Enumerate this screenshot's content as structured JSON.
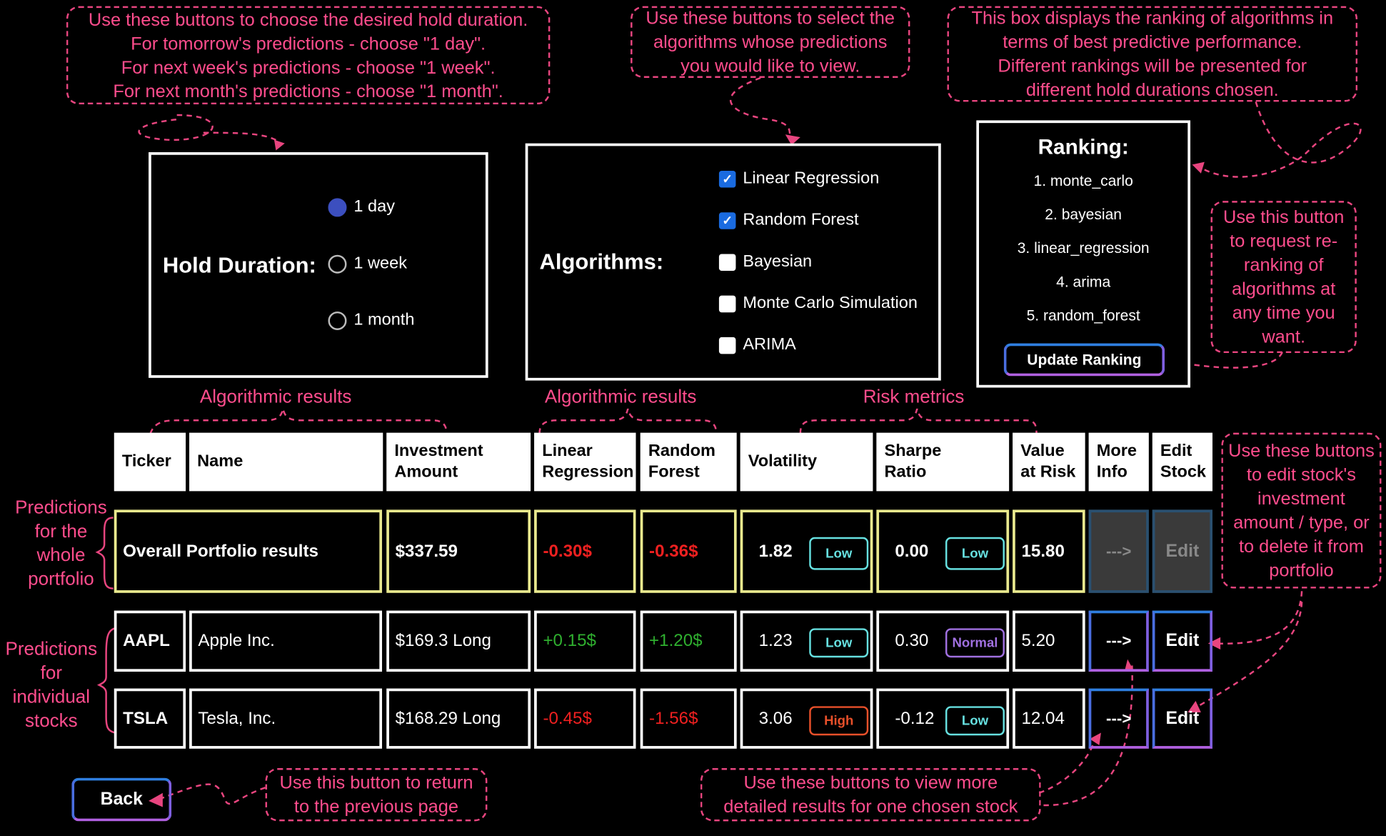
{
  "notes": {
    "hold": [
      "Use these buttons to choose the desired hold duration.",
      "For tomorrow's predictions - choose \"1 day\".",
      "For next week's predictions - choose \"1 week\".",
      "For next month's predictions - choose \"1 month\"."
    ],
    "algos": [
      "Use these buttons to select the",
      "algorithms whose predictions",
      "you would like to view."
    ],
    "ranking": [
      "This box displays the ranking of algorithms in",
      "terms of best predictive performance.",
      "Different rankings will be presented for",
      "different hold durations chosen."
    ],
    "update": [
      "Use this button",
      "to request re-",
      "ranking of",
      "algorithms at",
      "any time you",
      "want."
    ],
    "edit": [
      "Use these buttons",
      "to edit stock's",
      "investment",
      "amount / type, or",
      "to delete it from",
      "portfolio"
    ],
    "back": [
      "Use this button to return",
      "to the previous page"
    ],
    "more": [
      "Use these buttons to view more",
      "detailed results for one chosen stock"
    ],
    "portfolio_side": [
      "Predictions",
      "for the",
      "whole",
      "portfolio"
    ],
    "stocks_side": [
      "Predictions",
      "for",
      "individual",
      "stocks"
    ],
    "group1": "Algorithmic results",
    "group2": "Algorithmic results",
    "group3": "Risk metrics"
  },
  "hold": {
    "label": "Hold Duration:",
    "options": [
      "1 day",
      "1 week",
      "1 month"
    ],
    "selected": "1 day"
  },
  "algorithms": {
    "label": "Algorithms:",
    "options": [
      {
        "label": "Linear Regression",
        "checked": true
      },
      {
        "label": "Random Forest",
        "checked": true
      },
      {
        "label": "Bayesian",
        "checked": false
      },
      {
        "label": "Monte Carlo Simulation",
        "checked": false
      },
      {
        "label": "ARIMA",
        "checked": false
      }
    ]
  },
  "ranking": {
    "title": "Ranking:",
    "items": [
      "1. monte_carlo",
      "2. bayesian",
      "3. linear_regression",
      "4. arima",
      "5. random_forest"
    ],
    "button": "Update Ranking"
  },
  "table": {
    "headers": [
      "Ticker",
      "Name",
      "Investment Amount",
      "Linear Regression",
      "Random Forest",
      "Volatility",
      "Sharpe Ratio",
      "Value at Risk",
      "More Info",
      "Edit Stock"
    ],
    "portfolio": {
      "name": "Overall Portfolio results",
      "amount": "$337.59",
      "lr": "-0.30$",
      "rf": "-0.36$",
      "vol": "1.82",
      "vol_badge": "Low",
      "sharpe": "0.00",
      "sharpe_badge": "Low",
      "var": "15.80",
      "more": "--->",
      "edit": "Edit"
    },
    "rows": [
      {
        "ticker": "AAPL",
        "name": "Apple Inc.",
        "amount": "$169.3 Long",
        "lr": "+0.15$",
        "rf": "+1.20$",
        "vol": "1.23",
        "vol_badge": "Low",
        "sharpe": "0.30",
        "sharpe_badge": "Normal",
        "var": "5.20",
        "more": "--->",
        "edit": "Edit"
      },
      {
        "ticker": "TSLA",
        "name": "Tesla, Inc.",
        "amount": "$168.29 Long",
        "lr": "-0.45$",
        "rf": "-1.56$",
        "vol": "3.06",
        "vol_badge": "High",
        "sharpe": "-0.12",
        "sharpe_badge": "Low",
        "var": "12.04",
        "more": "--->",
        "edit": "Edit"
      }
    ]
  },
  "back": "Back",
  "colors": {
    "accent": "#ff4d8d",
    "low": "#66e0e0",
    "normal": "#a070e0",
    "high": "#e8502a",
    "negative": "#f02020",
    "positive": "#2fb02f",
    "highlight": "#e9e98e"
  }
}
